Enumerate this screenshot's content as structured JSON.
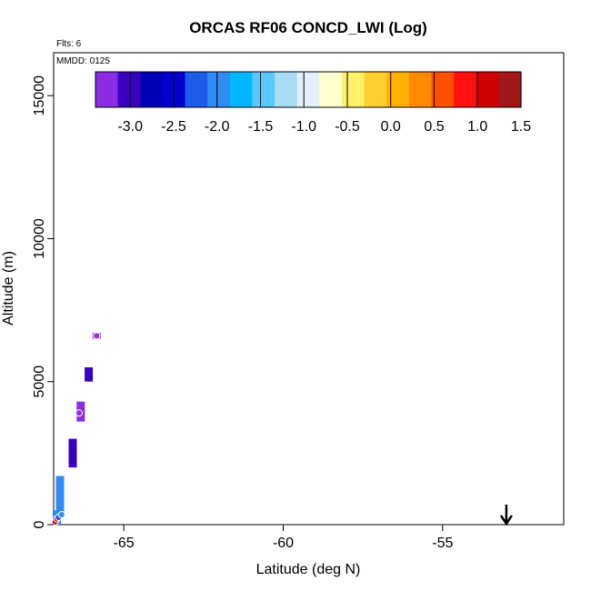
{
  "chart_data": {
    "type": "scatter",
    "title": "ORCAS RF06 CONCD_LWI (Log)",
    "xlabel": "Latitude (deg N)",
    "ylabel": "Altitude (m)",
    "annotations": {
      "flights": "Flts: 6",
      "mmdd": "MMDD: 0125"
    },
    "xlim": [
      -67.2,
      -51.2
    ],
    "ylim": [
      0,
      16500
    ],
    "x_ticks": [
      -65,
      -60,
      -55
    ],
    "x_tick_labels": [
      "-65",
      "-60",
      "-55"
    ],
    "y_ticks": [
      0,
      5000,
      10000,
      15000
    ],
    "y_tick_labels": [
      "0",
      "5000",
      "10000",
      "15000"
    ],
    "colorbar": {
      "min": -3.4,
      "max": 1.5,
      "ticks": [
        -3.0,
        -2.5,
        -2.0,
        -1.5,
        -1.0,
        -0.5,
        0.0,
        0.5,
        1.0,
        1.5
      ],
      "tick_labels": [
        "-3.0",
        "-2.5",
        "-2.0",
        "-1.5",
        "-1.0",
        "-0.5",
        "0.0",
        "0.5",
        "1.0",
        "1.5"
      ],
      "palette": [
        "#8B2BE2",
        "#3A00C0",
        "#0000B8",
        "#0000D0",
        "#1E5BEA",
        "#2F8CF5",
        "#00B8FF",
        "#5AC8F8",
        "#A8DCF5",
        "#E2F2FA",
        "#FFFFD0",
        "#FFF06A",
        "#FFD030",
        "#FFB000",
        "#FF8A00",
        "#FF5000",
        "#FF1010",
        "#D00000",
        "#A01818"
      ]
    },
    "cells": [
      {
        "lat": -67.1,
        "alt_min": 0,
        "alt_max": 500,
        "value": -2.0
      },
      {
        "lat": -67.0,
        "alt_min": 300,
        "alt_max": 1700,
        "value": -2.0
      },
      {
        "lat": -66.6,
        "alt_min": 2000,
        "alt_max": 3000,
        "value": -2.9
      },
      {
        "lat": -66.35,
        "alt_min": 3600,
        "alt_max": 4300,
        "value": -3.2
      },
      {
        "lat": -66.1,
        "alt_min": 5000,
        "alt_max": 5500,
        "value": -3.1
      },
      {
        "lat": -65.85,
        "alt_min": 6500,
        "alt_max": 6700,
        "value": -3.3
      }
    ],
    "points": [
      {
        "lat": -67.15,
        "alt": 100,
        "value": 1.3
      },
      {
        "lat": -67.1,
        "alt": 200,
        "value": 1.0
      },
      {
        "lat": -67.05,
        "alt": 250,
        "value": -2.2
      },
      {
        "lat": -66.95,
        "alt": 350,
        "value": -2.1
      },
      {
        "lat": -66.4,
        "alt": 3900,
        "value": -3.3
      },
      {
        "lat": -65.85,
        "alt": 6600,
        "value": -3.3
      }
    ],
    "arrow": {
      "lat": -53.0,
      "alt_top": 700,
      "alt_bottom": 0
    }
  }
}
